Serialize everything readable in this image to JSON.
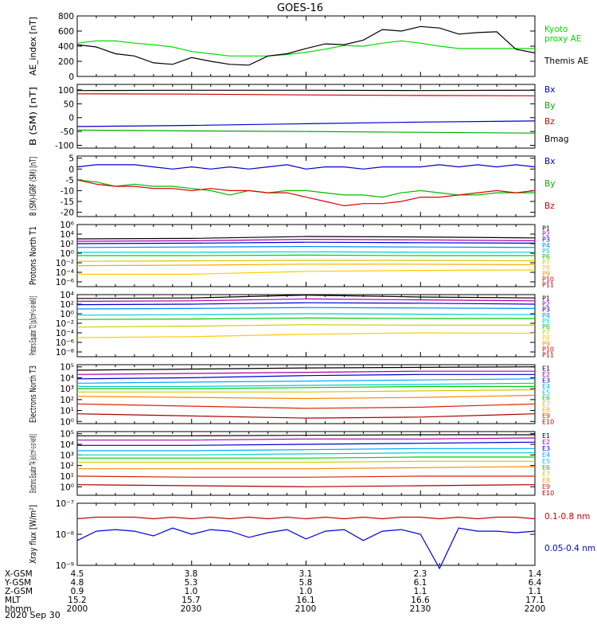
{
  "figure": {
    "title": "GOES-16",
    "date": "2020 Sep 30"
  },
  "ephemeris": {
    "labels": [
      "X-GSM",
      "Y-GSM",
      "Z-GSM",
      "MLT",
      "hhmm"
    ],
    "ticks": [
      {
        "values": [
          "4.5",
          "4.8",
          "0.9",
          "15.2",
          "2000"
        ]
      },
      {
        "values": [
          "3.8",
          "5.3",
          "1.0",
          "15.7",
          "2030"
        ]
      },
      {
        "values": [
          "3.1",
          "5.8",
          "1.0",
          "16.1",
          "2100"
        ]
      },
      {
        "values": [
          "2.3",
          "6.1",
          "1.1",
          "16.6",
          "2130"
        ]
      },
      {
        "values": [
          "1.4",
          "6.4",
          "1.1",
          "17.1",
          "2200"
        ]
      }
    ]
  },
  "chart_data": [
    {
      "type": "line",
      "ylabel": "AE_index [nT]",
      "ylim": [
        0,
        800
      ],
      "yticks": [
        "0",
        "200",
        "400",
        "600",
        "800"
      ],
      "x": [
        0,
        5,
        10,
        15,
        20,
        25,
        30,
        35,
        40,
        45,
        50,
        55,
        60,
        65,
        70,
        75,
        80,
        85,
        90,
        95,
        100,
        105,
        110,
        115,
        120
      ],
      "series": [
        {
          "name": "Kyoto proxy AE",
          "color": "#00dd00",
          "values": [
            440,
            470,
            470,
            440,
            420,
            390,
            330,
            300,
            270,
            270,
            270,
            290,
            320,
            360,
            410,
            400,
            440,
            470,
            440,
            400,
            370,
            370,
            370,
            370,
            370
          ]
        },
        {
          "name": "Themis AE",
          "color": "#000000",
          "values": [
            420,
            390,
            300,
            270,
            180,
            160,
            250,
            200,
            160,
            150,
            270,
            300,
            370,
            430,
            420,
            480,
            620,
            600,
            660,
            640,
            560,
            580,
            590,
            360,
            310
          ]
        }
      ]
    },
    {
      "type": "line",
      "ylabel": "B (SM) [nT]",
      "ylim": [
        -110,
        120
      ],
      "yticks": [
        "-100",
        "-50",
        "0",
        "50",
        "100"
      ],
      "x": [
        0,
        30,
        60,
        90,
        120
      ],
      "series": [
        {
          "name": "Bmag",
          "color": "#000000",
          "values": [
            98,
            99,
            99,
            98,
            99
          ]
        },
        {
          "name": "Bx",
          "color": "#0000cc",
          "values": [
            -32,
            -28,
            -22,
            -16,
            -12
          ]
        },
        {
          "name": "By",
          "color": "#00aa00",
          "values": [
            -45,
            -48,
            -50,
            -53,
            -56
          ]
        },
        {
          "name": "Bz",
          "color": "#cc0000",
          "values": [
            86,
            85,
            82,
            80,
            79
          ]
        }
      ]
    },
    {
      "type": "line",
      "ylabel": "B (SM)-IGRF (SM) [nT]",
      "ylim": [
        -22,
        6
      ],
      "yticks": [
        "-20",
        "-15",
        "-10",
        "-5",
        "0",
        "5"
      ],
      "x": [
        0,
        5,
        10,
        15,
        20,
        25,
        30,
        35,
        40,
        45,
        50,
        55,
        60,
        65,
        70,
        75,
        80,
        85,
        90,
        95,
        100,
        105,
        110,
        115,
        120
      ],
      "series": [
        {
          "name": "Bx",
          "color": "#0000cc",
          "values": [
            1,
            2,
            2,
            2,
            1,
            0,
            1,
            0,
            1,
            0,
            1,
            2,
            0,
            1,
            1,
            0,
            1,
            1,
            1,
            2,
            1,
            2,
            1,
            2,
            1
          ]
        },
        {
          "name": "By",
          "color": "#00bb00",
          "values": [
            -5,
            -6,
            -8,
            -7,
            -8,
            -8,
            -9,
            -10,
            -12,
            -10,
            -11,
            -10,
            -10,
            -11,
            -12,
            -12,
            -13,
            -11,
            -10,
            -11,
            -12,
            -12,
            -11,
            -11,
            -11
          ]
        },
        {
          "name": "Bz",
          "color": "#dd0000",
          "values": [
            -5,
            -7,
            -8,
            -8,
            -9,
            -9,
            -10,
            -9,
            -10,
            -10,
            -11,
            -11,
            -13,
            -15,
            -17,
            -16,
            -16,
            -15,
            -13,
            -13,
            -12,
            -11,
            -10,
            -11,
            -10
          ]
        }
      ]
    },
    {
      "type": "line",
      "ylabel": "Protons North T1",
      "ylim": [
        -7,
        6
      ],
      "yticks": [
        "10⁻⁶",
        "10⁻⁴",
        "10⁻²",
        "10⁰",
        "10²",
        "10⁴",
        "10⁶"
      ],
      "x": [
        0,
        30,
        60,
        90,
        120
      ],
      "series": [
        {
          "name": "P1",
          "color": "#000000",
          "values": [
            3.0,
            3.1,
            3.5,
            3.4,
            3.2
          ]
        },
        {
          "name": "P2",
          "color": "#aa00aa",
          "values": [
            2.5,
            2.6,
            2.9,
            2.8,
            2.6
          ]
        },
        {
          "name": "P3",
          "color": "#0000cc",
          "values": [
            2.0,
            2.1,
            2.3,
            2.2,
            2.1
          ]
        },
        {
          "name": "P4",
          "color": "#0088ff",
          "values": [
            1.2,
            1.3,
            1.4,
            1.3,
            1.2
          ]
        },
        {
          "name": "P5",
          "color": "#00cccc",
          "values": [
            0.2,
            0.2,
            0.3,
            0.2,
            0.2
          ]
        },
        {
          "name": "P6",
          "color": "#00cc00",
          "values": [
            -0.5,
            -0.5,
            -0.4,
            -0.5,
            -0.5
          ]
        },
        {
          "name": "P7",
          "color": "#cccc00",
          "values": [
            -1.7,
            -1.6,
            -1.5,
            -1.5,
            -1.6
          ]
        },
        {
          "name": "P8",
          "color": "#ffaa00",
          "values": [
            -2.6,
            -2.5,
            -2.3,
            -2.3,
            -2.4
          ]
        },
        {
          "name": "P9",
          "color": "#ffcc00",
          "values": [
            -4.4,
            -4.4,
            -3.8,
            -3.6,
            -3.5
          ]
        }
      ],
      "legend": [
        "P1",
        "P2",
        "P3",
        "P4",
        "P5",
        "P6",
        "P7",
        "P8",
        "P9",
        "P10",
        "P11"
      ]
    },
    {
      "type": "line",
      "ylabel": "Protons Equator T2 [p/(cm²-s-sr-keV)]",
      "ylim": [
        -9,
        4
      ],
      "yticks": [
        "10⁻⁸",
        "10⁻⁶",
        "10⁻⁴",
        "10⁻²",
        "10⁰",
        "10²",
        "10⁴"
      ],
      "x": [
        0,
        30,
        60,
        90,
        120
      ],
      "series": [
        {
          "name": "P1",
          "color": "#000000",
          "values": [
            3.2,
            3.3,
            3.9,
            3.5,
            3.3
          ]
        },
        {
          "name": "P2",
          "color": "#aa00aa",
          "values": [
            2.6,
            2.7,
            3.1,
            2.9,
            2.7
          ]
        },
        {
          "name": "P3",
          "color": "#0000cc",
          "values": [
            1.9,
            2.0,
            2.3,
            2.2,
            2.0
          ]
        },
        {
          "name": "P4",
          "color": "#0088ff",
          "values": [
            1.0,
            1.1,
            1.3,
            1.2,
            1.1
          ]
        },
        {
          "name": "P5",
          "color": "#00cccc",
          "values": [
            -0.3,
            -0.2,
            0.0,
            -0.1,
            -0.2
          ]
        },
        {
          "name": "P6",
          "color": "#00cc00",
          "values": [
            -1.2,
            -1.1,
            -0.9,
            -1.0,
            -1.0
          ]
        },
        {
          "name": "P7",
          "color": "#cccc00",
          "values": [
            -2.8,
            -2.6,
            -2.3,
            -2.4,
            -2.4
          ]
        },
        {
          "name": "P8",
          "color": "#ffcc00",
          "values": [
            -5.0,
            -4.8,
            -4.3,
            -4.0,
            -4.1
          ]
        }
      ],
      "legend": [
        "P1",
        "P2",
        "P3",
        "P4",
        "P5",
        "P6",
        "P7",
        "P8",
        "P9",
        "P10",
        "P11"
      ]
    },
    {
      "type": "line",
      "ylabel": "Electrons North T3",
      "ylim": [
        -0.2,
        5.2
      ],
      "yticks": [
        "10⁰",
        "10¹",
        "10²",
        "10³",
        "10⁴",
        "10⁵"
      ],
      "x": [
        0,
        30,
        60,
        90,
        120
      ],
      "series": [
        {
          "name": "E1",
          "color": "#000000",
          "values": [
            4.7,
            4.8,
            4.9,
            4.95,
            5.0
          ]
        },
        {
          "name": "E2",
          "color": "#aa00aa",
          "values": [
            4.3,
            4.4,
            4.5,
            4.6,
            4.6
          ]
        },
        {
          "name": "E3",
          "color": "#0000cc",
          "values": [
            3.9,
            4.0,
            4.2,
            4.3,
            4.3
          ]
        },
        {
          "name": "E4",
          "color": "#00aaff",
          "values": [
            3.5,
            3.6,
            3.7,
            3.8,
            3.9
          ]
        },
        {
          "name": "E5",
          "color": "#00cccc",
          "values": [
            3.2,
            3.2,
            3.3,
            3.4,
            3.5
          ]
        },
        {
          "name": "E6",
          "color": "#00cc00",
          "values": [
            3.0,
            3.0,
            3.1,
            3.2,
            3.2
          ]
        },
        {
          "name": "E7",
          "color": "#cccc00",
          "values": [
            2.7,
            2.7,
            2.7,
            2.8,
            2.9
          ]
        },
        {
          "name": "E8",
          "color": "#ff8800",
          "values": [
            2.3,
            2.2,
            2.1,
            2.2,
            2.4
          ]
        },
        {
          "name": "E9",
          "color": "#dd2200",
          "values": [
            1.6,
            1.4,
            1.2,
            1.3,
            1.6
          ]
        },
        {
          "name": "E10",
          "color": "#aa0000",
          "values": [
            0.7,
            0.5,
            0.3,
            0.4,
            0.7
          ]
        }
      ]
    },
    {
      "type": "line",
      "ylabel": "Electrons Equator T4 [e/(cm²-s-sr-keV)]",
      "ylim": [
        -0.8,
        5.2
      ],
      "yticks": [
        "10⁰",
        "10¹",
        "10²",
        "10³",
        "10⁴",
        "10⁵"
      ],
      "x": [
        0,
        30,
        60,
        90,
        120
      ],
      "series": [
        {
          "name": "E1",
          "color": "#000000",
          "values": [
            4.8,
            4.8,
            4.85,
            4.9,
            4.9
          ]
        },
        {
          "name": "E2",
          "color": "#aa00aa",
          "values": [
            4.4,
            4.4,
            4.5,
            4.5,
            4.6
          ]
        },
        {
          "name": "E3",
          "color": "#0000cc",
          "values": [
            3.9,
            3.9,
            4.0,
            4.1,
            4.2
          ]
        },
        {
          "name": "E4",
          "color": "#00aaff",
          "values": [
            3.4,
            3.4,
            3.5,
            3.6,
            3.6
          ]
        },
        {
          "name": "E5",
          "color": "#00cccc",
          "values": [
            3.0,
            3.0,
            3.1,
            3.2,
            3.2
          ]
        },
        {
          "name": "E6",
          "color": "#00cc00",
          "values": [
            2.7,
            2.7,
            2.7,
            2.8,
            2.8
          ]
        },
        {
          "name": "E7",
          "color": "#cccc00",
          "values": [
            2.3,
            2.3,
            2.3,
            2.4,
            2.4
          ]
        },
        {
          "name": "E8",
          "color": "#ff8800",
          "values": [
            1.7,
            1.7,
            1.7,
            1.8,
            1.9
          ]
        },
        {
          "name": "E9",
          "color": "#dd2200",
          "values": [
            1.0,
            0.9,
            0.9,
            1.0,
            1.0
          ]
        },
        {
          "name": "E10",
          "color": "#aa0000",
          "values": [
            0.2,
            0.1,
            0.0,
            0.1,
            0.2
          ]
        }
      ]
    },
    {
      "type": "line",
      "ylabel": "Xray flux [W/m²]",
      "ylim": [
        -9,
        -7
      ],
      "yticks": [
        "10⁻⁹",
        "10⁻⁸",
        "10⁻⁷"
      ],
      "x": [
        0,
        5,
        10,
        15,
        20,
        25,
        30,
        35,
        40,
        45,
        50,
        55,
        60,
        65,
        70,
        75,
        80,
        85,
        90,
        95,
        100,
        105,
        110,
        115,
        120
      ],
      "series": [
        {
          "name": "0.1-0.8 nm",
          "color": "#cc0000",
          "values": [
            -7.5,
            -7.45,
            -7.45,
            -7.45,
            -7.5,
            -7.45,
            -7.5,
            -7.45,
            -7.5,
            -7.45,
            -7.5,
            -7.45,
            -7.5,
            -7.45,
            -7.5,
            -7.45,
            -7.5,
            -7.45,
            -7.45,
            -7.5,
            -7.45,
            -7.5,
            -7.45,
            -7.45,
            -7.5
          ]
        },
        {
          "name": "0.05-0.4 nm",
          "color": "#0000dd",
          "values": [
            -8.2,
            -7.9,
            -7.85,
            -7.9,
            -8.05,
            -7.8,
            -8.0,
            -7.85,
            -7.9,
            -8.1,
            -7.95,
            -7.85,
            -8.15,
            -7.9,
            -7.85,
            -8.2,
            -7.9,
            -7.85,
            -8.0,
            -9.1,
            -7.8,
            -7.9,
            -7.9,
            -7.95,
            -7.9
          ]
        }
      ]
    }
  ]
}
